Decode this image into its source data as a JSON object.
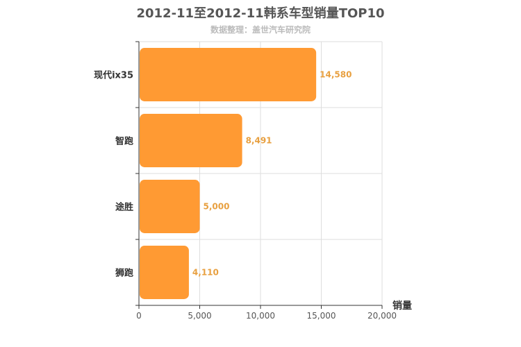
{
  "chart_data": {
    "type": "bar",
    "orientation": "horizontal",
    "title": "2012-11至2012-11韩系车型销量TOP10",
    "subtitle": "数据整理：盖世汽车研究院",
    "categories": [
      "现代ix35",
      "智跑",
      "途胜",
      "狮跑"
    ],
    "values": [
      14580,
      8491,
      5000,
      4110
    ],
    "value_labels": [
      "14,580",
      "8,491",
      "5,000",
      "4,110"
    ],
    "xlabel": "销量",
    "ylabel": "",
    "xlim": [
      0,
      20000
    ],
    "xticks": [
      0,
      5000,
      10000,
      15000,
      20000
    ],
    "xtick_labels": [
      "0",
      "5,000",
      "10,000",
      "15,000",
      "20,000"
    ],
    "grid": true,
    "legend": "none",
    "colors": {
      "bar": "#ff9a33",
      "value_label": "#e8a040",
      "grid": "#dddddd",
      "axis": "#333333"
    }
  }
}
